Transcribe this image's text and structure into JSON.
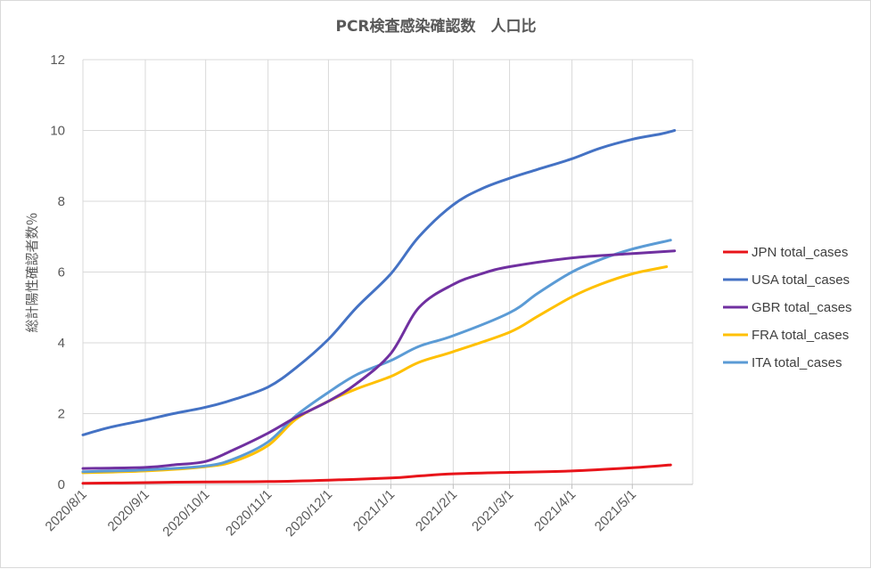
{
  "chart_data": {
    "type": "line",
    "title": "PCR検査感染確認数　人口比",
    "ylabel": "総計陽性確認者数％",
    "xlabel": "",
    "ylim": [
      0,
      12
    ],
    "yticks": [
      0,
      2,
      4,
      6,
      8,
      10,
      12
    ],
    "xlim": [
      "2020-08-01",
      "2021-05-31"
    ],
    "xticks": [
      "2020-08-01",
      "2020-09-01",
      "2020-10-01",
      "2020-11-01",
      "2020-12-01",
      "2021-01-01",
      "2021-02-01",
      "2021-03-01",
      "2021-04-01",
      "2021-05-01"
    ],
    "xtick_labels": [
      "2020/8/1",
      "2020/9/1",
      "2020/10/1",
      "2020/11/1",
      "2020/12/1",
      "2021/1/1",
      "2021/2/1",
      "2021/3/1",
      "2021/4/1",
      "2021/5/1"
    ],
    "grid": true,
    "legend_position": "right",
    "series": [
      {
        "name": "JPN total_cases",
        "color": "#e8141a",
        "points": [
          [
            "2020-08-01",
            0.03
          ],
          [
            "2020-09-01",
            0.05
          ],
          [
            "2020-10-01",
            0.07
          ],
          [
            "2020-11-01",
            0.08
          ],
          [
            "2020-12-01",
            0.12
          ],
          [
            "2021-01-01",
            0.18
          ],
          [
            "2021-01-15",
            0.24
          ],
          [
            "2021-02-01",
            0.3
          ],
          [
            "2021-03-01",
            0.34
          ],
          [
            "2021-04-01",
            0.38
          ],
          [
            "2021-05-01",
            0.47
          ],
          [
            "2021-05-20",
            0.55
          ]
        ]
      },
      {
        "name": "USA total_cases",
        "color": "#4472c4",
        "points": [
          [
            "2020-08-01",
            1.4
          ],
          [
            "2020-08-15",
            1.62
          ],
          [
            "2020-09-01",
            1.82
          ],
          [
            "2020-09-15",
            2.0
          ],
          [
            "2020-10-01",
            2.18
          ],
          [
            "2020-10-15",
            2.4
          ],
          [
            "2020-11-01",
            2.75
          ],
          [
            "2020-11-15",
            3.3
          ],
          [
            "2020-12-01",
            4.1
          ],
          [
            "2020-12-15",
            5.0
          ],
          [
            "2021-01-01",
            5.95
          ],
          [
            "2021-01-15",
            7.0
          ],
          [
            "2021-02-01",
            7.9
          ],
          [
            "2021-02-15",
            8.35
          ],
          [
            "2021-03-01",
            8.65
          ],
          [
            "2021-03-15",
            8.9
          ],
          [
            "2021-04-01",
            9.2
          ],
          [
            "2021-04-15",
            9.5
          ],
          [
            "2021-05-01",
            9.75
          ],
          [
            "2021-05-15",
            9.9
          ],
          [
            "2021-05-22",
            10.0
          ]
        ]
      },
      {
        "name": "GBR total_cases",
        "color": "#7030a0",
        "points": [
          [
            "2020-08-01",
            0.45
          ],
          [
            "2020-09-01",
            0.48
          ],
          [
            "2020-09-15",
            0.55
          ],
          [
            "2020-10-01",
            0.65
          ],
          [
            "2020-10-15",
            0.98
          ],
          [
            "2020-11-01",
            1.45
          ],
          [
            "2020-11-15",
            1.9
          ],
          [
            "2020-12-01",
            2.35
          ],
          [
            "2020-12-15",
            2.85
          ],
          [
            "2021-01-01",
            3.7
          ],
          [
            "2021-01-15",
            5.0
          ],
          [
            "2021-02-01",
            5.65
          ],
          [
            "2021-02-15",
            5.95
          ],
          [
            "2021-03-01",
            6.15
          ],
          [
            "2021-04-01",
            6.4
          ],
          [
            "2021-05-01",
            6.52
          ],
          [
            "2021-05-22",
            6.6
          ]
        ]
      },
      {
        "name": "FRA total_cases",
        "color": "#ffc000",
        "points": [
          [
            "2020-08-01",
            0.33
          ],
          [
            "2020-09-01",
            0.38
          ],
          [
            "2020-10-01",
            0.5
          ],
          [
            "2020-10-15",
            0.65
          ],
          [
            "2020-11-01",
            1.1
          ],
          [
            "2020-11-15",
            1.85
          ],
          [
            "2020-12-01",
            2.35
          ],
          [
            "2020-12-15",
            2.7
          ],
          [
            "2021-01-01",
            3.05
          ],
          [
            "2021-01-15",
            3.45
          ],
          [
            "2021-02-01",
            3.75
          ],
          [
            "2021-03-01",
            4.3
          ],
          [
            "2021-03-15",
            4.75
          ],
          [
            "2021-04-01",
            5.3
          ],
          [
            "2021-04-15",
            5.65
          ],
          [
            "2021-05-01",
            5.95
          ],
          [
            "2021-05-18",
            6.15
          ]
        ]
      },
      {
        "name": "ITA total_cases",
        "color": "#5b9bd5",
        "points": [
          [
            "2020-08-01",
            0.36
          ],
          [
            "2020-09-01",
            0.41
          ],
          [
            "2020-10-01",
            0.52
          ],
          [
            "2020-10-15",
            0.72
          ],
          [
            "2020-11-01",
            1.2
          ],
          [
            "2020-11-15",
            1.95
          ],
          [
            "2020-12-01",
            2.6
          ],
          [
            "2020-12-15",
            3.1
          ],
          [
            "2021-01-01",
            3.5
          ],
          [
            "2021-01-15",
            3.9
          ],
          [
            "2021-02-01",
            4.2
          ],
          [
            "2021-03-01",
            4.85
          ],
          [
            "2021-03-15",
            5.4
          ],
          [
            "2021-04-01",
            6.0
          ],
          [
            "2021-04-15",
            6.35
          ],
          [
            "2021-05-01",
            6.65
          ],
          [
            "2021-05-20",
            6.9
          ]
        ]
      }
    ]
  }
}
